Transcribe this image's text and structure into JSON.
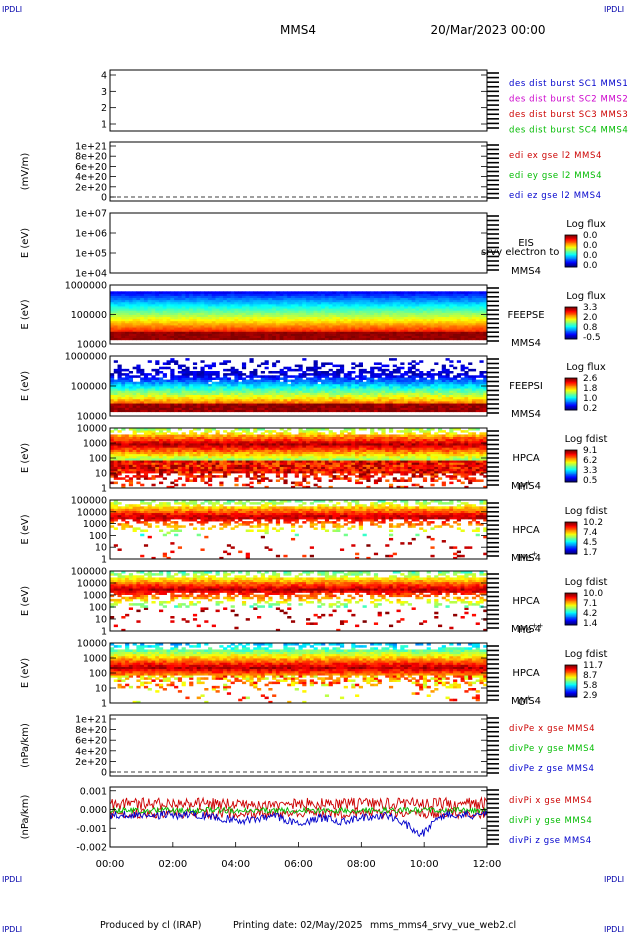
{
  "corner_label": "IPDLI",
  "header": {
    "spacecraft": "MMS4",
    "date": "20/Mar/2023 00:00"
  },
  "footer": {
    "producer": "Produced by  cl (IRAP)",
    "printing_date": "Printing date: 02/May/2025",
    "procedure": "mms_mms4_srvy_vue_web2.cl"
  },
  "chart_data": {
    "type": "multi-panel",
    "x_axis": {
      "range": [
        "00:00",
        "12:00"
      ],
      "tick_labels": [
        "00:00",
        "02:00",
        "04:00",
        "06:00",
        "08:00",
        "10:00",
        "12:00"
      ]
    },
    "panels": [
      {
        "id": "des-dist-burst",
        "type": "line",
        "ylabel": "",
        "ytick_labels": [
          "1",
          "2",
          "3",
          "4"
        ],
        "legend": [
          {
            "label": "des dist burst SC1 MMS1",
            "color": "#0000cc"
          },
          {
            "label": "des dist burst SC2 MMS2",
            "color": "#cc00cc"
          },
          {
            "label": "des dist burst SC3 MMS3",
            "color": "#cc0000"
          },
          {
            "label": "des dist burst SC4 MMS4",
            "color": "#00bb00"
          }
        ]
      },
      {
        "id": "edi-e-gse",
        "type": "line",
        "ylabel": "(mV/m)",
        "ytick_labels": [
          "0",
          "2e+20",
          "4e+20",
          "6e+20",
          "8e+20",
          "1e+21"
        ],
        "legend": [
          {
            "label": "edi ex gse l2 MMS4",
            "color": "#cc0000"
          },
          {
            "label": "edi ey gse l2 MMS4",
            "color": "#00bb00"
          },
          {
            "label": "edi ez gse l2 MMS4",
            "color": "#0000cc"
          }
        ]
      },
      {
        "id": "eis",
        "type": "heatmap",
        "ylabel": "E (eV)",
        "yscale": "log",
        "ytick_labels": [
          "1e+04",
          "1e+05",
          "1e+06",
          "1e+07"
        ],
        "instrument": [
          "EIS",
          "MMS4"
        ],
        "overlay_text": "srvy electron to",
        "colorbar": {
          "title": "Log flux",
          "ticks": [
            "0.0",
            "0.0",
            "0.0",
            "0.0"
          ]
        }
      },
      {
        "id": "feepse",
        "type": "heatmap",
        "ylabel": "E (eV)",
        "yscale": "log",
        "ytick_labels": [
          "10000",
          "100000",
          "1000000"
        ],
        "instrument": [
          "FEEPSE",
          "MMS4"
        ],
        "colorbar": {
          "title": "Log flux",
          "ticks": [
            "3.3",
            "2.0",
            "0.8",
            "-0.5"
          ]
        }
      },
      {
        "id": "feepsi",
        "type": "heatmap",
        "ylabel": "E (eV)",
        "yscale": "log",
        "ytick_labels": [
          "10000",
          "100000",
          "1000000"
        ],
        "instrument": [
          "FEEPSI",
          "MMS4"
        ],
        "colorbar": {
          "title": "Log flux",
          "ticks": [
            "2.6",
            "1.8",
            "1.0",
            "0.2"
          ]
        }
      },
      {
        "id": "hpca-h",
        "type": "heatmap",
        "ylabel": "E (eV)",
        "yscale": "log",
        "ytick_labels": [
          "1",
          "10",
          "100",
          "1000",
          "10000"
        ],
        "instrument": [
          "HPCA",
          "MMS4"
        ],
        "species": {
          "base": "H",
          "sup": "+"
        },
        "colorbar": {
          "title": "Log fdist",
          "ticks": [
            "9.1",
            "6.2",
            "3.3",
            "0.5"
          ]
        }
      },
      {
        "id": "hpca-he",
        "type": "heatmap",
        "ylabel": "E (eV)",
        "yscale": "log",
        "ytick_labels": [
          "1",
          "10",
          "100",
          "1000",
          "10000",
          "100000"
        ],
        "instrument": [
          "HPCA",
          "MMS4"
        ],
        "species": {
          "base": "He",
          "sup": "+"
        },
        "colorbar": {
          "title": "Log fdist",
          "ticks": [
            "10.2",
            "7.4",
            "4.5",
            "1.7"
          ]
        }
      },
      {
        "id": "hpca-hepp",
        "type": "heatmap",
        "ylabel": "E (eV)",
        "yscale": "log",
        "ytick_labels": [
          "1",
          "10",
          "100",
          "1000",
          "10000",
          "100000"
        ],
        "instrument": [
          "HPCA",
          "MMS4"
        ],
        "species": {
          "base": "He",
          "sup": "++"
        },
        "colorbar": {
          "title": "Log fdist",
          "ticks": [
            "10.0",
            "7.1",
            "4.2",
            "1.4"
          ]
        }
      },
      {
        "id": "hpca-o",
        "type": "heatmap",
        "ylabel": "E (eV)",
        "yscale": "log",
        "ytick_labels": [
          "1",
          "10",
          "100",
          "1000",
          "10000"
        ],
        "instrument": [
          "HPCA",
          "MMS4"
        ],
        "species": {
          "base": "O",
          "sup": "+"
        },
        "colorbar": {
          "title": "Log fdist",
          "ticks": [
            "11.7",
            "8.7",
            "5.8",
            "2.9"
          ]
        }
      },
      {
        "id": "divpe",
        "type": "line",
        "ylabel": "(nPa/km)",
        "ytick_labels": [
          "0",
          "2e+20",
          "4e+20",
          "6e+20",
          "8e+20",
          "1e+21"
        ],
        "legend": [
          {
            "label": "divPe x gse MMS4",
            "color": "#cc0000"
          },
          {
            "label": "divPe y gse MMS4",
            "color": "#00bb00"
          },
          {
            "label": "divPe z gse MMS4",
            "color": "#0000cc"
          }
        ]
      },
      {
        "id": "divpi",
        "type": "line",
        "ylabel": "(nPa/km)",
        "ytick_labels": [
          "-0.002",
          "-0.001",
          "0.000",
          "0.001"
        ],
        "ylim": [
          -0.002,
          0.0012
        ],
        "legend": [
          {
            "label": "divPi x gse MMS4",
            "color": "#cc0000"
          },
          {
            "label": "divPi y gse MMS4",
            "color": "#00bb00"
          },
          {
            "label": "divPi z gse MMS4",
            "color": "#0000cc"
          }
        ]
      }
    ]
  }
}
